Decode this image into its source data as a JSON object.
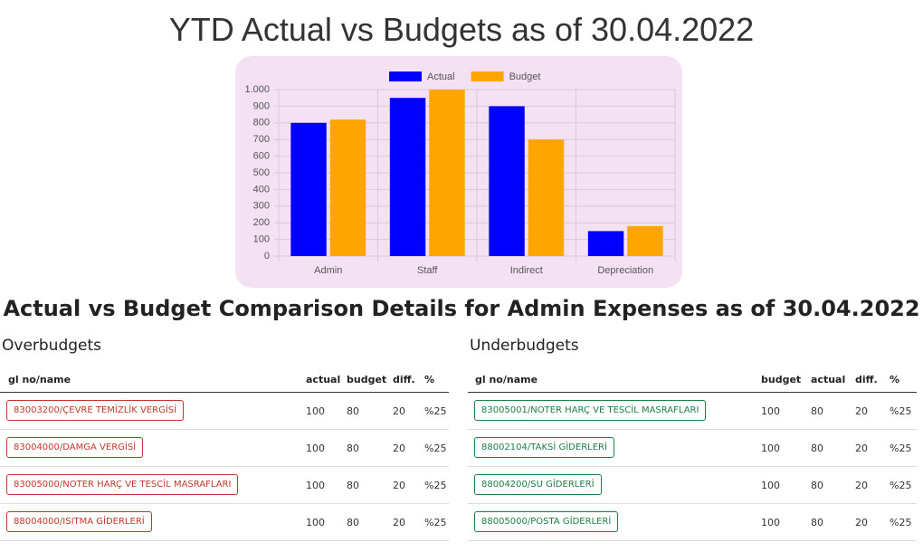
{
  "chart_data": {
    "type": "bar",
    "title": "YTD Actual vs Budgets as of 30.04.2022",
    "categories": [
      "Admin",
      "Staff",
      "Indirect",
      "Depreciation"
    ],
    "series": [
      {
        "name": "Actual",
        "color": "#0000ff",
        "values": [
          800,
          950,
          900,
          150
        ]
      },
      {
        "name": "Budget",
        "color": "#ffa500",
        "values": [
          820,
          1000,
          700,
          180
        ]
      }
    ],
    "ylim": [
      0,
      1000
    ],
    "yticks": [
      0,
      100,
      200,
      300,
      400,
      500,
      600,
      700,
      800,
      900,
      {
        "value": 1000,
        "label": "1.000"
      }
    ],
    "grid": true,
    "legend": "top"
  },
  "heading": "Actual vs Budget Comparison Details for Admin Expenses as of 30.04.2022",
  "overbudgets": {
    "title": "Overbudgets",
    "columns": [
      "gl no/name",
      "actual",
      "budget",
      "diff.",
      "%"
    ],
    "rows": [
      [
        "83003200/ÇEVRE TEMİZLİK VERGİSİ",
        100,
        80,
        20,
        "%25"
      ],
      [
        "83004000/DAMGA VERGİSİ",
        100,
        80,
        20,
        "%25"
      ],
      [
        "83005000/NOTER HARÇ VE TESCİL MASRAFLARI",
        100,
        80,
        20,
        "%25"
      ],
      [
        "88004000/ISITMA GİDERLERİ",
        100,
        80,
        20,
        "%25"
      ]
    ]
  },
  "underbudgets": {
    "title": "Underbudgets",
    "columns": [
      "gl no/name",
      "budget",
      "actual",
      "diff.",
      "%"
    ],
    "rows": [
      [
        "83005001/NOTER HARÇ VE TESCİL MASRAFLARI",
        100,
        80,
        20,
        "%25"
      ],
      [
        "88002104/TAKSİ GİDERLERİ",
        100,
        80,
        20,
        "%25"
      ],
      [
        "88004200/SU GİDERLERİ",
        100,
        80,
        20,
        "%25"
      ],
      [
        "88005000/POSTA GİDERLERİ",
        100,
        80,
        20,
        "%25"
      ]
    ]
  }
}
